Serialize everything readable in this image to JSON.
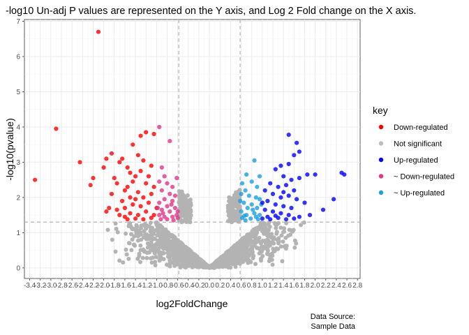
{
  "chart_data": {
    "type": "scatter",
    "title": "-log10 Un-adj P values are represented on the Y axis, and Log 2 Fold change on the X axis.",
    "xlabel": "log2FoldChange",
    "ylabel": "-log10(pvalue)",
    "xlim": [
      -3.5,
      2.85
    ],
    "ylim": [
      -0.3,
      7.05
    ],
    "x_ticks": [
      -3.4,
      -3.2,
      -3.0,
      -2.8,
      -2.6,
      -2.4,
      -2.2,
      -2.0,
      -1.8,
      -1.6,
      -1.4,
      -1.2,
      -1.0,
      -0.8,
      -0.6,
      -0.4,
      -0.2,
      0.0,
      0.2,
      0.4,
      0.6,
      0.8,
      1.0,
      1.2,
      1.4,
      1.6,
      1.8,
      2.0,
      2.2,
      2.4,
      2.6,
      2.8
    ],
    "x_tick_labels": [
      "-3.4",
      "-3.2",
      "-3.0",
      "-2.8",
      "-2.6",
      "-2.4",
      "-2.2",
      "-2.0",
      "-1.8",
      "-1.6",
      "-1.4",
      "-1.2",
      "-1.0",
      "-0.8",
      "-0.6",
      "-0.4",
      "-0.2",
      "0.0",
      "0.2",
      "0.4",
      "0.6",
      "0.8",
      "1.0",
      "1.2",
      "1.4",
      "1.6",
      "1.8",
      "2.0",
      "2.2",
      "2.4",
      "2.6",
      "2.8"
    ],
    "y_ticks": [
      0,
      1,
      2,
      3,
      4,
      5,
      6,
      7
    ],
    "y_tick_labels": [
      "0",
      "1",
      "2",
      "3",
      "4",
      "5",
      "6",
      "7"
    ],
    "vlines": [
      -0.58,
      0.58
    ],
    "hline": 1.3,
    "grid": true,
    "legend": {
      "title": "key",
      "position": "right",
      "entries": [
        {
          "label": "Down-regulated",
          "color": "#ff0000"
        },
        {
          "label": "Not significant",
          "color": "#bebebe"
        },
        {
          "label": "Up-regulated",
          "color": "#0000ff"
        },
        {
          "label": "~ Down-regulated",
          "color": "#e0358a"
        },
        {
          "label": "~ Up-regulated",
          "color": "#1a9fe0"
        }
      ]
    },
    "caption": [
      "Data Source:",
      "Sample Data"
    ],
    "series": [
      {
        "name": "Down-regulated",
        "color": "#ff0000",
        "points": [
          [
            -2.1,
            6.7
          ],
          [
            -2.9,
            3.95
          ],
          [
            -3.3,
            2.5
          ],
          [
            -2.45,
            3.0
          ],
          [
            -2.2,
            2.55
          ],
          [
            -2.25,
            2.35
          ],
          [
            -1.85,
            3.25
          ],
          [
            -1.95,
            3.1
          ],
          [
            -1.7,
            3.0
          ],
          [
            -1.65,
            3.1
          ],
          [
            -2.0,
            2.85
          ],
          [
            -1.8,
            2.55
          ],
          [
            -1.75,
            2.4
          ],
          [
            -1.55,
            2.85
          ],
          [
            -1.5,
            2.7
          ],
          [
            -1.4,
            2.6
          ],
          [
            -1.6,
            2.2
          ],
          [
            -1.85,
            2.1
          ],
          [
            -1.9,
            1.7
          ],
          [
            -1.75,
            1.65
          ],
          [
            -1.95,
            1.6
          ],
          [
            -1.3,
            3.75
          ],
          [
            -1.2,
            3.85
          ],
          [
            -1.05,
            3.8
          ],
          [
            -1.45,
            3.5
          ],
          [
            -1.35,
            3.2
          ],
          [
            -1.25,
            3.05
          ],
          [
            -1.1,
            2.9
          ],
          [
            -1.3,
            2.75
          ],
          [
            -1.15,
            2.6
          ],
          [
            -1.45,
            2.45
          ],
          [
            -1.55,
            2.3
          ],
          [
            -1.2,
            2.4
          ],
          [
            -1.05,
            2.3
          ],
          [
            -1.35,
            2.15
          ],
          [
            -1.5,
            2.0
          ],
          [
            -1.65,
            1.9
          ],
          [
            -1.25,
            2.0
          ],
          [
            -1.1,
            2.1
          ],
          [
            -1.45,
            1.8
          ],
          [
            -1.3,
            1.75
          ],
          [
            -1.6,
            1.7
          ],
          [
            -1.7,
            1.5
          ],
          [
            -1.5,
            1.55
          ],
          [
            -1.35,
            1.5
          ],
          [
            -1.2,
            1.6
          ],
          [
            -1.05,
            1.5
          ],
          [
            -1.4,
            1.4
          ],
          [
            -1.25,
            1.38
          ],
          [
            -1.1,
            1.42
          ],
          [
            -1.55,
            1.38
          ],
          [
            -1.0,
            1.7
          ],
          [
            -1.15,
            1.85
          ],
          [
            -1.4,
            1.95
          ],
          [
            -1.6,
            1.45
          ]
        ]
      },
      {
        "name": "~ Down-regulated",
        "color": "#e0358a",
        "points": [
          [
            -0.95,
            4.0
          ],
          [
            -0.75,
            3.6
          ],
          [
            -0.9,
            2.85
          ],
          [
            -0.85,
            2.6
          ],
          [
            -0.95,
            2.45
          ],
          [
            -0.8,
            2.4
          ],
          [
            -0.7,
            2.3
          ],
          [
            -0.62,
            2.55
          ],
          [
            -0.9,
            2.2
          ],
          [
            -0.75,
            2.1
          ],
          [
            -0.65,
            2.05
          ],
          [
            -0.85,
            1.95
          ],
          [
            -0.95,
            1.85
          ],
          [
            -0.7,
            1.9
          ],
          [
            -0.8,
            1.75
          ],
          [
            -0.65,
            1.7
          ],
          [
            -0.9,
            1.65
          ],
          [
            -0.75,
            1.6
          ],
          [
            -0.95,
            1.5
          ],
          [
            -0.85,
            1.45
          ],
          [
            -0.7,
            1.45
          ],
          [
            -0.62,
            1.5
          ],
          [
            -0.8,
            1.38
          ],
          [
            -0.92,
            1.38
          ],
          [
            -0.68,
            1.35
          ],
          [
            -0.6,
            1.42
          ],
          [
            -0.88,
            1.55
          ],
          [
            -0.72,
            1.8
          ],
          [
            -0.6,
            1.6
          ],
          [
            -0.98,
            1.7
          ]
        ]
      },
      {
        "name": "~ Up-regulated",
        "color": "#1a9fe0",
        "points": [
          [
            0.85,
            3.05
          ],
          [
            0.7,
            2.65
          ],
          [
            0.62,
            2.4
          ],
          [
            0.95,
            2.6
          ],
          [
            0.8,
            2.45
          ],
          [
            0.9,
            2.3
          ],
          [
            0.68,
            2.2
          ],
          [
            0.6,
            2.1
          ],
          [
            0.75,
            2.05
          ],
          [
            0.88,
            2.0
          ],
          [
            0.95,
            1.95
          ],
          [
            0.65,
            1.85
          ],
          [
            0.8,
            1.8
          ],
          [
            0.72,
            1.7
          ],
          [
            0.9,
            1.7
          ],
          [
            0.6,
            1.6
          ],
          [
            0.85,
            1.55
          ],
          [
            0.7,
            1.5
          ],
          [
            0.95,
            1.5
          ],
          [
            0.62,
            1.42
          ],
          [
            0.78,
            1.4
          ],
          [
            0.92,
            1.38
          ],
          [
            0.68,
            1.35
          ],
          [
            0.82,
            1.65
          ],
          [
            0.98,
            1.8
          ],
          [
            0.58,
            1.9
          ],
          [
            0.66,
            1.48
          ],
          [
            0.88,
            1.45
          ]
        ]
      },
      {
        "name": "Up-regulated",
        "color": "#0000ff",
        "points": [
          [
            1.5,
            3.78
          ],
          [
            1.65,
            3.55
          ],
          [
            1.7,
            3.3
          ],
          [
            1.85,
            2.65
          ],
          [
            2.0,
            2.65
          ],
          [
            2.5,
            2.7
          ],
          [
            2.55,
            2.65
          ],
          [
            2.35,
            1.95
          ],
          [
            2.15,
            1.65
          ],
          [
            1.9,
            1.5
          ],
          [
            1.6,
            3.2
          ],
          [
            1.5,
            2.95
          ],
          [
            1.35,
            2.9
          ],
          [
            1.25,
            2.8
          ],
          [
            1.4,
            2.6
          ],
          [
            1.55,
            2.5
          ],
          [
            1.7,
            2.55
          ],
          [
            1.45,
            2.35
          ],
          [
            1.3,
            2.3
          ],
          [
            1.15,
            2.4
          ],
          [
            1.05,
            2.2
          ],
          [
            1.2,
            2.1
          ],
          [
            1.35,
            2.0
          ],
          [
            1.5,
            2.05
          ],
          [
            1.65,
            1.95
          ],
          [
            1.8,
            1.85
          ],
          [
            1.1,
            1.9
          ],
          [
            1.25,
            1.8
          ],
          [
            1.4,
            1.75
          ],
          [
            1.55,
            1.7
          ],
          [
            1.05,
            1.65
          ],
          [
            1.2,
            1.6
          ],
          [
            1.35,
            1.55
          ],
          [
            1.5,
            1.5
          ],
          [
            1.7,
            1.45
          ],
          [
            1.1,
            1.45
          ],
          [
            1.3,
            1.42
          ],
          [
            1.45,
            1.38
          ],
          [
            1.6,
            1.4
          ],
          [
            1.0,
            1.4
          ],
          [
            1.15,
            1.38
          ],
          [
            1.25,
            1.48
          ],
          [
            1.0,
            1.85
          ],
          [
            1.4,
            2.15
          ],
          [
            1.6,
            2.2
          ]
        ]
      }
    ]
  }
}
